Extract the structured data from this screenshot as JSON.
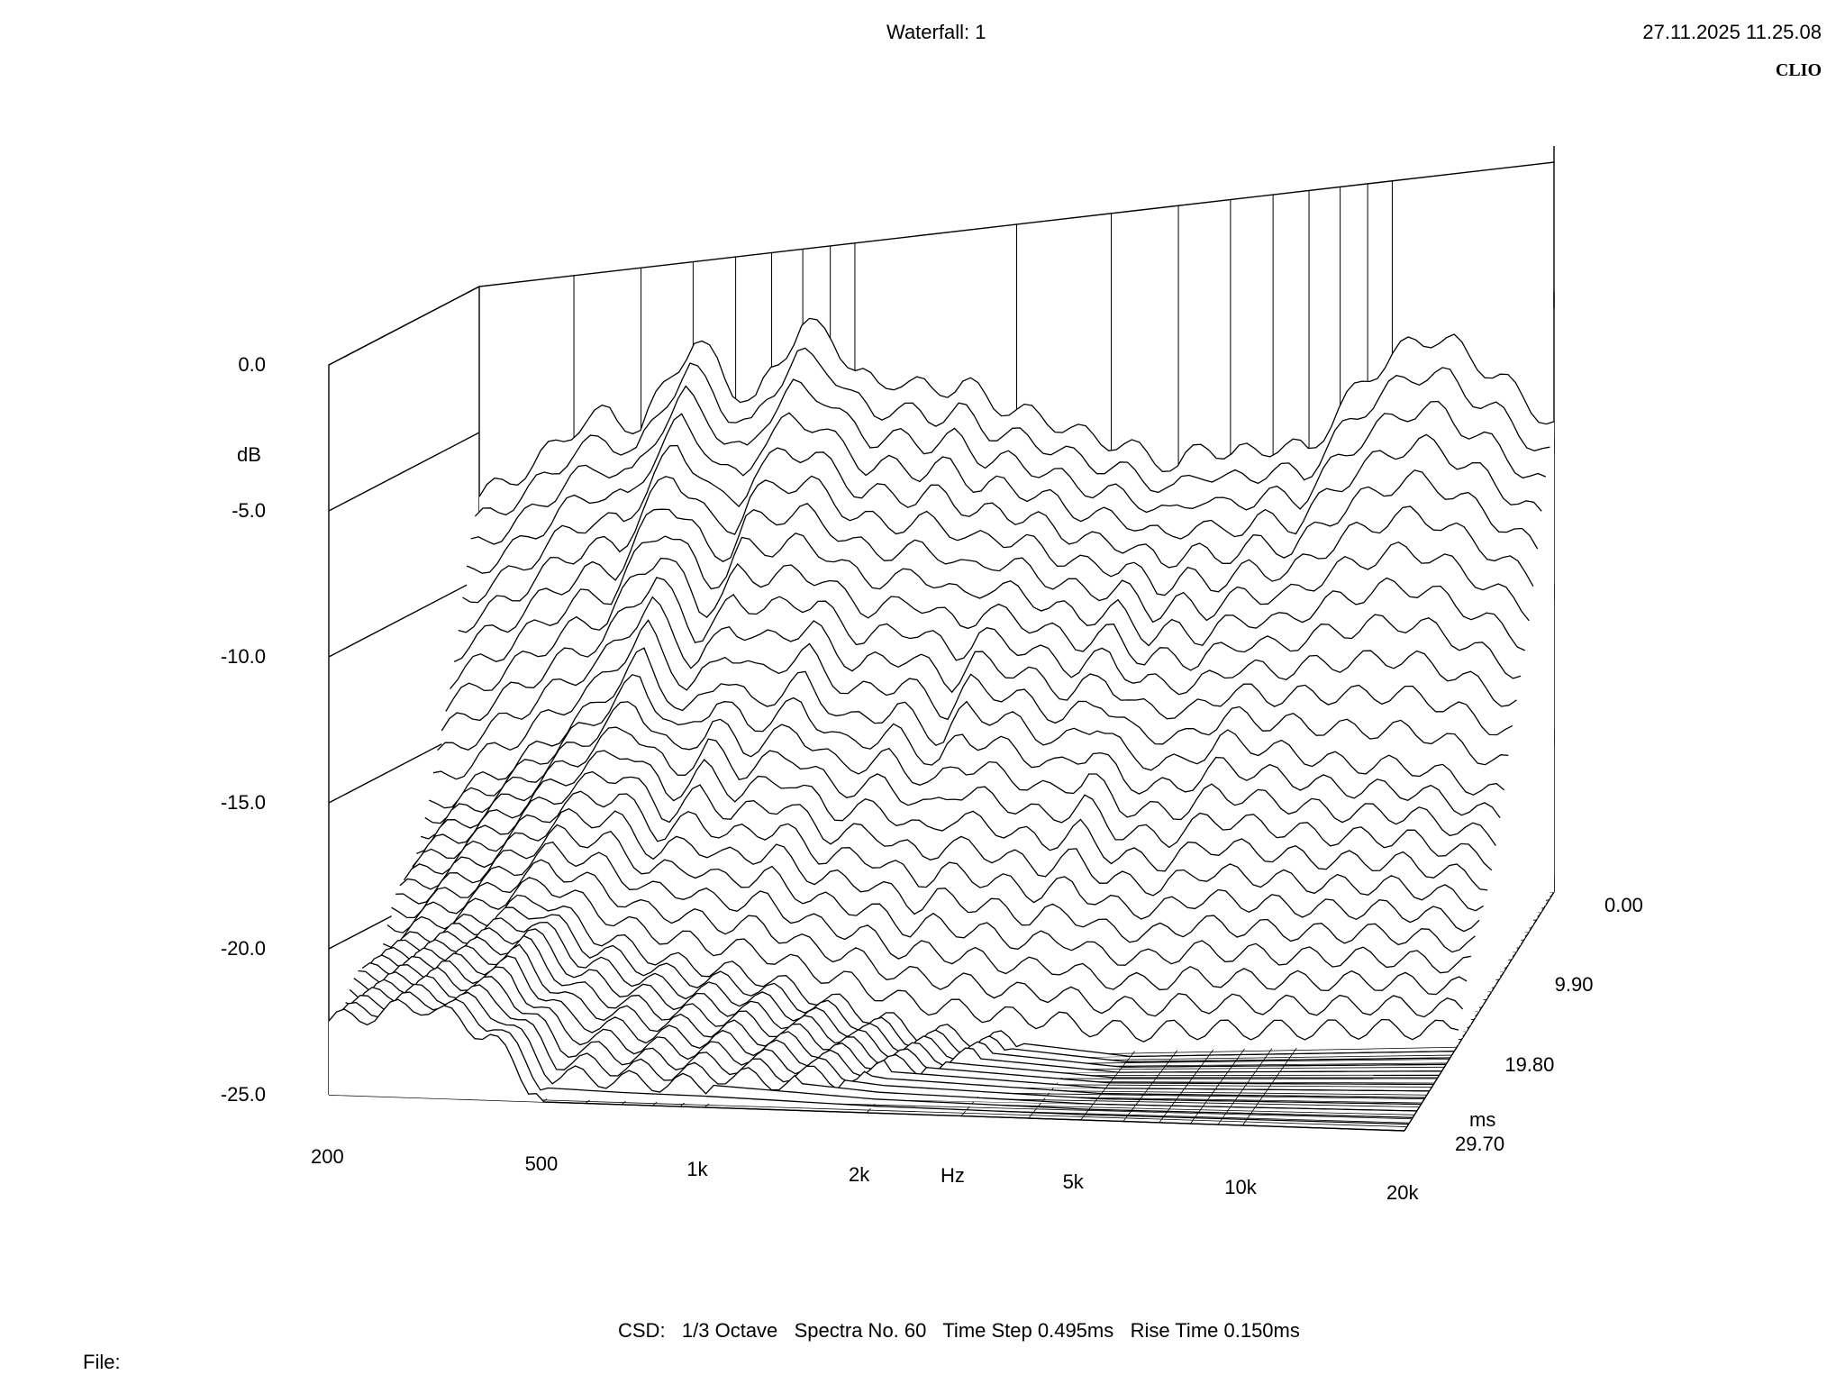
{
  "header": {
    "title": "Waterfall: 1",
    "timestamp": "27.11.2025 11.25.08",
    "brand": "CLIO"
  },
  "footer": {
    "settings": "CSD:   1/3 Octave   Spectra No. 60   Time Step 0.495ms   Rise Time 0.150ms",
    "file_label": "File:"
  },
  "chart_data": {
    "type": "waterfall",
    "title": "Waterfall: 1",
    "xlabel": "Hz",
    "ylabel": "dB",
    "zlabel": "ms",
    "x_scale": "log",
    "xlim": [
      200,
      20000
    ],
    "ylim": [
      -25,
      0
    ],
    "zlim": [
      0,
      29.7
    ],
    "x_ticks": [
      "200",
      "500",
      "1k",
      "2k",
      "5k",
      "10k",
      "20k"
    ],
    "y_ticks": [
      "0.0",
      "-5.0",
      "-10.0",
      "-15.0",
      "-20.0",
      "-25.0"
    ],
    "z_ticks": [
      "0.00",
      "9.90",
      "19.80",
      "29.70"
    ],
    "spectra_count": 60,
    "time_step_ms": 0.495,
    "rise_time_ms": 0.15,
    "smoothing": "1/3 Octave",
    "series": [
      {
        "time_ms": 0.0,
        "points": [
          [
            200,
            -7.2
          ],
          [
            250,
            -6.4
          ],
          [
            300,
            -5.2
          ],
          [
            350,
            -4.8
          ],
          [
            400,
            -5.6
          ],
          [
            450,
            -3.8
          ],
          [
            500,
            -2.8
          ],
          [
            550,
            -3.4
          ],
          [
            600,
            -4.6
          ],
          [
            650,
            -5.2
          ],
          [
            700,
            -4.0
          ],
          [
            800,
            -2.6
          ],
          [
            900,
            -3.0
          ],
          [
            1000,
            -4.4
          ],
          [
            1100,
            -5.0
          ],
          [
            1200,
            -4.8
          ],
          [
            1400,
            -5.4
          ],
          [
            1600,
            -5.2
          ],
          [
            1800,
            -6.0
          ],
          [
            2000,
            -6.4
          ],
          [
            2300,
            -6.8
          ],
          [
            2600,
            -7.4
          ],
          [
            3000,
            -7.8
          ],
          [
            3500,
            -8.4
          ],
          [
            4000,
            -9.0
          ],
          [
            4500,
            -8.2
          ],
          [
            5000,
            -8.8
          ],
          [
            6000,
            -8.6
          ],
          [
            7000,
            -8.9
          ],
          [
            8000,
            -7.6
          ],
          [
            9000,
            -6.6
          ],
          [
            10000,
            -6.0
          ],
          [
            11000,
            -5.6
          ],
          [
            12000,
            -5.5
          ],
          [
            13000,
            -5.8
          ],
          [
            14000,
            -6.4
          ],
          [
            16000,
            -7.2
          ],
          [
            18000,
            -8.2
          ],
          [
            20000,
            -9.0
          ]
        ]
      },
      {
        "time_ms": 9.9,
        "points": [
          [
            200,
            -17.0
          ],
          [
            300,
            -15.5
          ],
          [
            400,
            -14.0
          ],
          [
            500,
            -12.2
          ],
          [
            600,
            -14.5
          ],
          [
            700,
            -13.0
          ],
          [
            800,
            -14.2
          ],
          [
            1000,
            -13.4
          ],
          [
            1200,
            -15.0
          ],
          [
            1500,
            -14.6
          ],
          [
            1800,
            -15.8
          ],
          [
            2000,
            -14.8
          ],
          [
            2500,
            -15.4
          ],
          [
            3000,
            -16.2
          ],
          [
            3500,
            -15.5
          ],
          [
            4000,
            -16.8
          ],
          [
            5000,
            -17.2
          ],
          [
            6000,
            -16.4
          ],
          [
            8000,
            -17.0
          ],
          [
            10000,
            -17.5
          ],
          [
            14000,
            -17.8
          ],
          [
            20000,
            -19.0
          ]
        ]
      },
      {
        "time_ms": 19.8,
        "points": [
          [
            200,
            -21.0
          ],
          [
            300,
            -20.0
          ],
          [
            400,
            -19.2
          ],
          [
            500,
            -20.5
          ],
          [
            700,
            -21.5
          ],
          [
            1000,
            -22.0
          ],
          [
            2000,
            -24.0
          ],
          [
            5000,
            -25.0
          ],
          [
            20000,
            -25.0
          ]
        ]
      },
      {
        "time_ms": 29.7,
        "points": [
          [
            200,
            -22.5
          ],
          [
            300,
            -21.8
          ],
          [
            400,
            -22.8
          ],
          [
            500,
            -25.0
          ],
          [
            1000,
            -25.0
          ],
          [
            20000,
            -25.0
          ]
        ]
      }
    ]
  }
}
